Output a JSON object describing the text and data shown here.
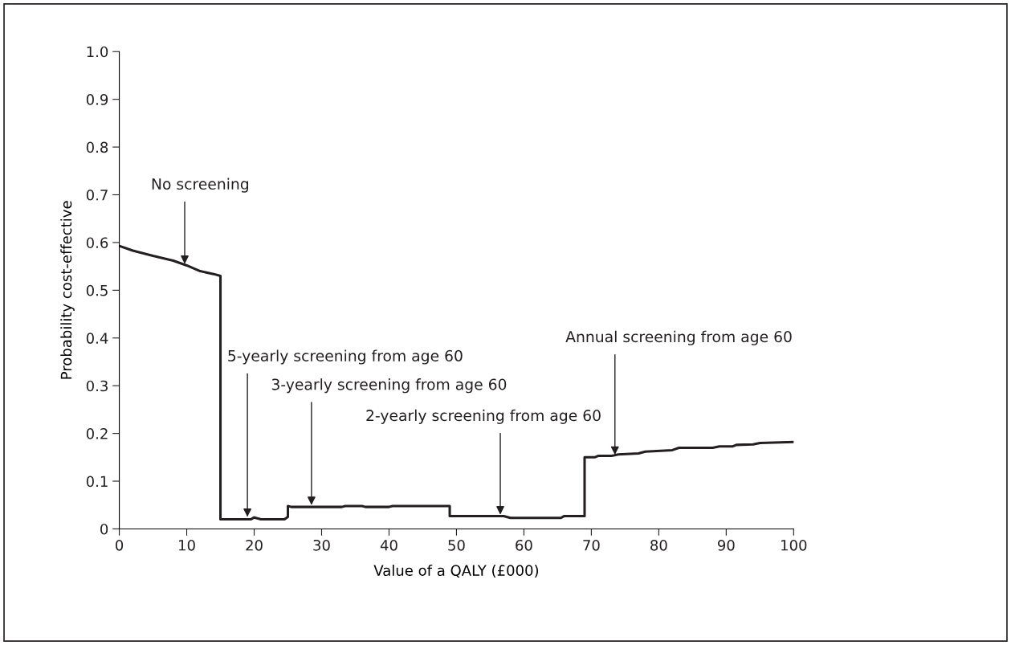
{
  "chart_data": {
    "type": "line",
    "xlabel": "Value of a QALY (£000)",
    "ylabel": "Probability cost-effective",
    "x": [
      0,
      2,
      5,
      8,
      10,
      12,
      14,
      15,
      15,
      19.5,
      20,
      21,
      24.5,
      25,
      25,
      25.5,
      33,
      33.5,
      36,
      36.5,
      40,
      40.5,
      49,
      49,
      57,
      58,
      65.5,
      66,
      69,
      69,
      70.5,
      71,
      73,
      74,
      77,
      78,
      82,
      83,
      88,
      89,
      91,
      91.5,
      94,
      95,
      100
    ],
    "series": [
      {
        "color": "#231f20",
        "values": [
          0.593,
          0.583,
          0.572,
          0.562,
          0.552,
          0.54,
          0.534,
          0.53,
          0.02,
          0.02,
          0.024,
          0.02,
          0.02,
          0.025,
          0.048,
          0.046,
          0.046,
          0.048,
          0.048,
          0.046,
          0.046,
          0.048,
          0.048,
          0.027,
          0.027,
          0.023,
          0.023,
          0.027,
          0.027,
          0.15,
          0.15,
          0.153,
          0.153,
          0.156,
          0.158,
          0.162,
          0.165,
          0.17,
          0.17,
          0.173,
          0.173,
          0.176,
          0.177,
          0.18,
          0.182
        ]
      }
    ],
    "annotations": [
      {
        "text": "No screening",
        "x": 9.7,
        "y": 0.555
      },
      {
        "text": "5-yearly screening from age 60",
        "x": 19,
        "y": 0.025
      },
      {
        "text": "3-yearly screening from age 60",
        "x": 28.5,
        "y": 0.05
      },
      {
        "text": "2-yearly screening from age 60",
        "x": 56.5,
        "y": 0.03
      },
      {
        "text": "Annual screening from age 60",
        "x": 73.5,
        "y": 0.155
      }
    ],
    "xlim": [
      0,
      100
    ],
    "ylim": [
      0,
      1.0
    ],
    "xticks": [
      0,
      10,
      20,
      30,
      40,
      50,
      60,
      70,
      80,
      90,
      100
    ],
    "yticks": [
      0,
      0.1,
      0.2,
      0.3,
      0.4,
      0.5,
      0.6,
      0.7,
      0.8,
      0.9,
      {
        "value": 1,
        "label": "1.0"
      }
    ],
    "grid": false,
    "legend": false,
    "marker": "none",
    "line_style": "solid"
  }
}
